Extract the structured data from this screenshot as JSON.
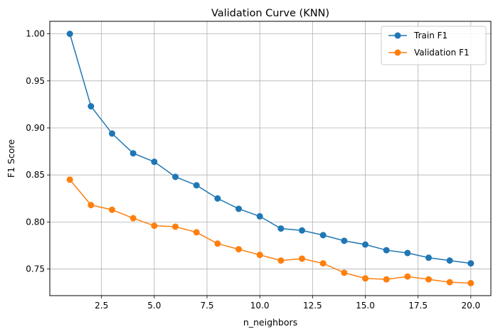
{
  "chart_data": {
    "type": "line",
    "title": "Validation Curve (KNN)",
    "xlabel": "n_neighbors",
    "ylabel": "F1 Score",
    "x": [
      1,
      2,
      3,
      4,
      5,
      6,
      7,
      8,
      9,
      10,
      11,
      12,
      13,
      14,
      15,
      16,
      17,
      18,
      19,
      20
    ],
    "xlim": [
      0.05,
      20.95
    ],
    "ylim": [
      0.7217,
      1.0133
    ],
    "xticks": [
      2.5,
      5.0,
      7.5,
      10.0,
      12.5,
      15.0,
      17.5,
      20.0
    ],
    "xtick_labels": [
      "2.5",
      "5.0",
      "7.5",
      "10.0",
      "12.5",
      "15.0",
      "17.5",
      "20.0"
    ],
    "yticks": [
      0.75,
      0.8,
      0.85,
      0.9,
      0.95,
      1.0
    ],
    "ytick_labels": [
      "0.75",
      "0.80",
      "0.85",
      "0.90",
      "0.95",
      "1.00"
    ],
    "grid": true,
    "legend_position": "top-right",
    "series": [
      {
        "name": "Train F1",
        "color": "#1f77b4",
        "values": [
          1.0,
          0.923,
          0.894,
          0.873,
          0.864,
          0.848,
          0.839,
          0.825,
          0.814,
          0.806,
          0.793,
          0.791,
          0.786,
          0.78,
          0.776,
          0.77,
          0.767,
          0.762,
          0.759,
          0.756
        ]
      },
      {
        "name": "Validation F1",
        "color": "#ff7f0e",
        "values": [
          0.845,
          0.818,
          0.813,
          0.804,
          0.796,
          0.795,
          0.789,
          0.777,
          0.771,
          0.765,
          0.759,
          0.761,
          0.756,
          0.746,
          0.74,
          0.739,
          0.742,
          0.739,
          0.736,
          0.735
        ]
      }
    ]
  }
}
